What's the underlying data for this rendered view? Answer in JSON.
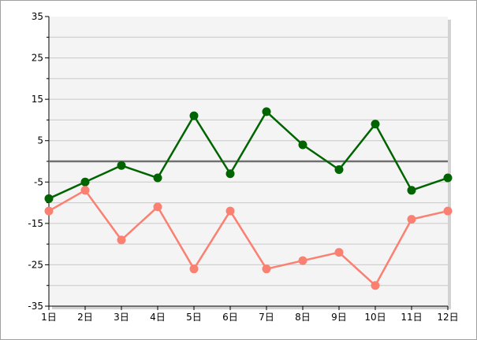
{
  "chart_data": {
    "type": "line",
    "categories": [
      "1日",
      "2日",
      "3日",
      "4日",
      "5日",
      "6日",
      "7日",
      "8日",
      "9日",
      "10日",
      "11日",
      "12日"
    ],
    "series": [
      {
        "values": [
          -9,
          -5,
          -1,
          -4,
          11,
          -3,
          12,
          4,
          -2,
          9,
          -7,
          -4
        ],
        "color": "#006400"
      },
      {
        "values": [
          -12,
          -7,
          -19,
          -11,
          -26,
          -12,
          -26,
          -24,
          -22,
          -30,
          -14,
          -12
        ],
        "color": "#fa8072"
      }
    ],
    "reference_line": {
      "value": 0,
      "color": "#707070"
    },
    "ylim": [
      -35,
      35
    ],
    "y_ticks": [
      35,
      25,
      15,
      5,
      -5,
      -15,
      -25,
      -35
    ],
    "grid": true,
    "legend": "none"
  }
}
